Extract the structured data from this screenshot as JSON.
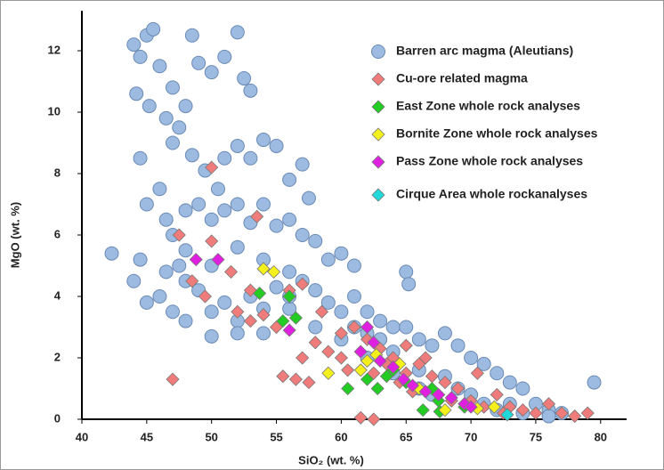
{
  "chart_data": {
    "type": "scatter",
    "x_label": "SiO₂ (wt. %)",
    "y_label": "MgO (wt. %)",
    "xlim": [
      40,
      82
    ],
    "ylim": [
      0,
      13.3
    ],
    "xticks": [
      40,
      45,
      50,
      55,
      60,
      65,
      70,
      75,
      80
    ],
    "yticks": [
      0,
      2,
      4,
      6,
      8,
      10,
      12
    ],
    "legend": "upper right",
    "series": [
      {
        "name": "Barren arc magma (Aleutians)",
        "color": "#9dbbe0",
        "marker": "circle",
        "x": [
          42.3,
          44,
          44.5,
          45,
          45.5,
          46,
          44.2,
          45.2,
          46.5,
          47,
          47.5,
          48,
          48.5,
          49,
          50,
          51,
          52,
          52.5,
          53,
          47,
          48.5,
          49.5,
          50.5,
          51,
          52,
          53,
          54,
          55,
          56,
          57,
          57.5,
          44.5,
          45,
          46,
          46.5,
          47,
          48,
          49,
          50,
          51,
          52,
          53,
          54,
          55,
          56,
          57,
          58,
          59,
          60,
          61,
          44.5,
          44,
          46,
          45,
          47.5,
          48,
          49,
          50,
          51,
          52,
          53,
          54,
          55,
          56,
          57,
          58,
          59,
          60,
          61,
          62,
          63,
          64,
          65,
          65.2,
          65,
          66,
          67,
          68,
          69,
          70,
          71,
          72,
          73,
          74,
          75,
          76,
          77,
          79.5,
          68,
          69,
          70,
          71,
          72,
          66,
          64,
          63,
          62,
          61,
          58,
          56,
          54,
          52,
          50,
          48,
          47,
          46.5,
          48,
          50,
          52,
          54,
          56,
          60,
          62,
          64,
          66,
          67,
          73,
          74,
          76
        ],
        "y": [
          5.4,
          12.2,
          11.8,
          12.5,
          12.7,
          11.5,
          10.6,
          10.2,
          9.8,
          10.8,
          9.5,
          10.2,
          12.5,
          11.6,
          11.3,
          11.8,
          12.6,
          11.1,
          10.7,
          9,
          8.6,
          8.1,
          7.5,
          8.5,
          8.9,
          8.5,
          9.1,
          8.9,
          7.8,
          8.3,
          7.2,
          8.5,
          7,
          7.5,
          6.5,
          6,
          6.8,
          7,
          6.5,
          6.8,
          7,
          6.4,
          7,
          6.3,
          6.5,
          6,
          5.8,
          5.2,
          5.4,
          5,
          5.2,
          4.5,
          4,
          3.8,
          5,
          4.5,
          4.2,
          3.5,
          3.8,
          3.2,
          4,
          3.6,
          4.3,
          4.8,
          4.5,
          4.2,
          3.8,
          3.5,
          4,
          3.5,
          3.2,
          3,
          4.8,
          4.4,
          3,
          2.6,
          2.4,
          2.8,
          2.4,
          2,
          1.8,
          1.5,
          1.2,
          1,
          0.5,
          0.3,
          0.2,
          1.2,
          1.4,
          1,
          0.8,
          0.5,
          0.3,
          1.6,
          2.2,
          2.6,
          2.8,
          3,
          3,
          3.6,
          2.8,
          2.8,
          2.7,
          3.2,
          3.5,
          4.8,
          5.5,
          5,
          5.6,
          5.2,
          4,
          2.6,
          2,
          1.5,
          1,
          0.8,
          0.5,
          0.2,
          0.1
        ]
      },
      {
        "name": "Cu-ore related magma",
        "color": "#f07b7b",
        "marker": "diamond",
        "x": [
          47,
          50,
          53.5,
          47.5,
          48.5,
          50,
          51.5,
          52,
          53,
          54,
          55,
          55.5,
          56.5,
          57,
          57.5,
          58,
          59,
          60,
          60.5,
          61,
          62,
          62.5,
          63,
          64,
          64.5,
          65,
          65.5,
          66,
          66.5,
          67,
          67.5,
          68,
          68.5,
          69,
          70,
          70.5,
          71,
          72,
          72.5,
          73,
          74,
          75,
          76,
          77,
          78,
          79,
          61.5,
          62.5,
          56,
          57,
          53,
          49.5,
          58.5,
          60,
          61.5,
          63.5,
          65
        ],
        "y": [
          1.3,
          8.2,
          6.6,
          6,
          4.5,
          5.8,
          4.8,
          3.5,
          4.2,
          3.4,
          3,
          1.4,
          1.3,
          2,
          1.2,
          2.5,
          2.2,
          2.8,
          1.6,
          3,
          2.6,
          1.5,
          2.3,
          2,
          1.2,
          2.4,
          0.9,
          1.8,
          2,
          1.4,
          0.8,
          1.2,
          0.6,
          1,
          0.6,
          1.5,
          0.4,
          0.8,
          0.2,
          0.4,
          0.3,
          0.2,
          0.5,
          0.2,
          0.1,
          0.2,
          0.05,
          0,
          4.2,
          4.4,
          3.2,
          4,
          3.5,
          2,
          2.2,
          1.8,
          1.5
        ]
      },
      {
        "name": "East Zone whole rock analyses",
        "color": "#22cc22",
        "marker": "diamond",
        "x": [
          53.7,
          55.5,
          56,
          56.5,
          60.5,
          62,
          62.8,
          63.5,
          64,
          65,
          66.5,
          67,
          67.5,
          66.3,
          67.6,
          69.5
        ],
        "y": [
          4.1,
          3.2,
          4,
          3.3,
          1,
          1.3,
          1,
          1.4,
          1.6,
          1.2,
          0.9,
          1,
          0.6,
          0.3,
          0.25,
          0.4
        ]
      },
      {
        "name": "Bornite Zone whole rock analyses",
        "color": "#f4f01c",
        "marker": "diamond",
        "x": [
          54,
          54.8,
          59,
          61.5,
          62,
          62.7,
          64.5,
          66,
          68,
          69.5,
          70.5,
          71.8
        ],
        "y": [
          4.9,
          4.8,
          1.5,
          1.6,
          1.9,
          2.1,
          1.8,
          1,
          0.3,
          0.5,
          0.35,
          0.4
        ]
      },
      {
        "name": "Pass Zone whole rock analyses",
        "color": "#e020e0",
        "marker": "diamond",
        "x": [
          48.8,
          50.5,
          56,
          61.5,
          62,
          62.5,
          63,
          64,
          64.8,
          65.5,
          66.5,
          67.5,
          68.5,
          69.5,
          70
        ],
        "y": [
          5.2,
          5.2,
          2.9,
          2.2,
          3,
          2.5,
          1.9,
          1.7,
          1.3,
          1.1,
          0.9,
          0.8,
          0.7,
          0.5,
          0.4
        ]
      },
      {
        "name": "Cirque Area whole rockanalyses",
        "color": "#22d8d8",
        "marker": "diamond",
        "x": [
          72.8
        ],
        "y": [
          0.15
        ]
      }
    ]
  }
}
